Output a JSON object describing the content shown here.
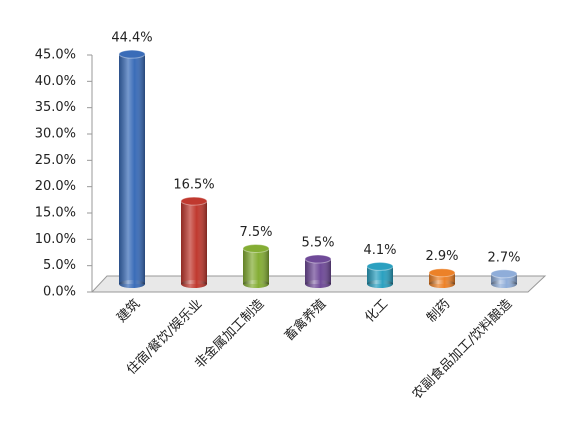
{
  "chart_data": {
    "type": "bar",
    "categories": [
      "建筑",
      "住宿/餐饮/娱乐业",
      "非金属加工制造",
      "畜禽养殖",
      "化工",
      "制药",
      "农副食品加工/饮料酿造"
    ],
    "values": [
      44.4,
      16.5,
      7.5,
      5.5,
      4.1,
      2.9,
      2.7
    ],
    "value_labels": [
      "44.4%",
      "16.5%",
      "7.5%",
      "5.5%",
      "4.1%",
      "2.9%",
      "2.7%"
    ],
    "colors": [
      "#3a6cb8",
      "#c0392f",
      "#84ad34",
      "#6f4a98",
      "#2aa0c0",
      "#ec8128",
      "#8fadd9"
    ],
    "ylim": [
      0,
      45
    ],
    "yticks": [
      {
        "value": 0,
        "label": "0.0%"
      },
      {
        "value": 5,
        "label": "5.0%"
      },
      {
        "value": 10,
        "label": "10.0%"
      },
      {
        "value": 15,
        "label": "15.0%"
      },
      {
        "value": 20,
        "label": "20.0%"
      },
      {
        "value": 25,
        "label": "25.0%"
      },
      {
        "value": 30,
        "label": "30.0%"
      },
      {
        "value": 35,
        "label": "35.0%"
      },
      {
        "value": 40,
        "label": "40.0%"
      },
      {
        "value": 45,
        "label": "45.0%"
      }
    ]
  }
}
